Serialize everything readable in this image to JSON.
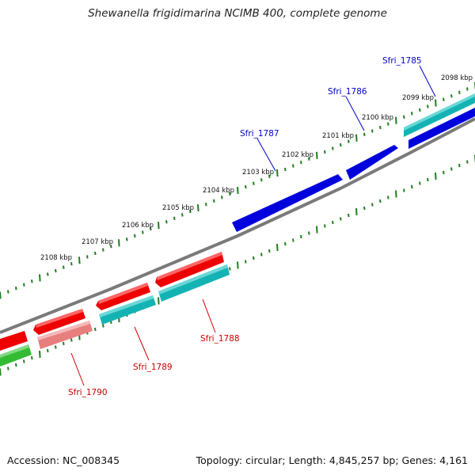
{
  "title": "Shewanella frigidimarina NCIMB 400, complete genome",
  "footer": {
    "accession": "Accession: NC_008345",
    "summary": "Topology: circular; Length: 4,845,257 bp; Genes: 4,161"
  },
  "colors": {
    "backbone": "#7a7a7a",
    "ticks": "#1e7f1e",
    "forward_label": "#0000cc",
    "reverse_label": "#cc0000",
    "gene_blue": "#0000dd",
    "gene_cyan": "#14b3b3",
    "gene_red": "#ee0000",
    "gene_pink": "#e87f7f",
    "gene_green": "#33bb33"
  },
  "scale_labels": [
    "2098 kbp",
    "2099 kbp",
    "2100 kbp",
    "2101 kbp",
    "2102 kbp",
    "2103 kbp",
    "2104 kbp",
    "2105 kbp",
    "2106 kbp",
    "2107 kbp",
    "2108 kbp"
  ],
  "genes": [
    {
      "label": "Sfri_1785",
      "strand": "forward",
      "color": "gene_cyan"
    },
    {
      "label": "Sfri_1786",
      "strand": "forward",
      "color": "gene_blue"
    },
    {
      "label": "Sfri_1787",
      "strand": "forward",
      "color": "gene_blue"
    },
    {
      "label": "Sfri_1788",
      "strand": "reverse",
      "color": "gene_red"
    },
    {
      "label": "Sfri_1789",
      "strand": "reverse",
      "color": "gene_red"
    },
    {
      "label": "Sfri_1790",
      "strand": "reverse",
      "color": "gene_red"
    }
  ]
}
